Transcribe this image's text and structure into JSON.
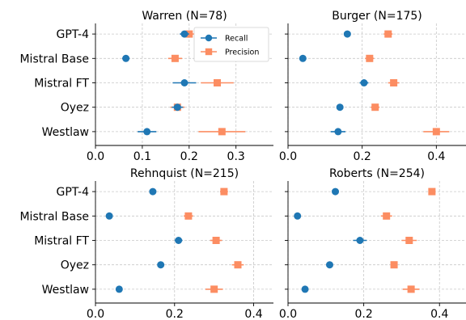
{
  "colors": {
    "recall": "#1f77b4",
    "precision": "#fc8d62"
  },
  "legend": {
    "recall": "Recall",
    "precision": "Precision",
    "placement": "top-right of first panel"
  },
  "chart_data": [
    {
      "type": "scatter",
      "title": "Warren (N=78)",
      "categories": [
        "GPT-4",
        "Mistral Base",
        "Mistral FT",
        "Oyez",
        "Westlaw"
      ],
      "xlim": [
        0,
        0.38
      ],
      "xticks": [
        "0.0",
        "0.1",
        "0.2",
        "0.3"
      ],
      "grid": true,
      "series": [
        {
          "name": "Recall",
          "values": [
            0.19,
            0.065,
            0.19,
            0.175,
            0.11
          ],
          "err": [
            0.01,
            0.008,
            0.025,
            0.012,
            0.02
          ]
        },
        {
          "name": "Precision",
          "values": [
            0.2,
            0.17,
            0.26,
            0.175,
            0.27
          ],
          "err": [
            0.012,
            0.015,
            0.035,
            0.015,
            0.05
          ]
        }
      ]
    },
    {
      "type": "scatter",
      "title": "Burger (N=175)",
      "categories": [
        "GPT-4",
        "Mistral Base",
        "Mistral FT",
        "Oyez",
        "Westlaw"
      ],
      "xlim": [
        0,
        0.48
      ],
      "xticks": [
        "0.0",
        "0.2",
        "0.4"
      ],
      "grid": true,
      "series": [
        {
          "name": "Recall",
          "values": [
            0.16,
            0.04,
            0.205,
            0.14,
            0.135
          ],
          "err": [
            0.005,
            0.005,
            0.012,
            0.005,
            0.02
          ]
        },
        {
          "name": "Precision",
          "values": [
            0.27,
            0.22,
            0.285,
            0.235,
            0.4
          ],
          "err": [
            0.012,
            0.012,
            0.015,
            0.012,
            0.035
          ]
        }
      ]
    },
    {
      "type": "scatter",
      "title": "Rehnquist (N=215)",
      "categories": [
        "GPT-4",
        "Mistral Base",
        "Mistral FT",
        "Oyez",
        "Westlaw"
      ],
      "xlim": [
        0,
        0.45
      ],
      "xticks": [
        "0.0",
        "0.2",
        "0.4"
      ],
      "grid": true,
      "series": [
        {
          "name": "Recall",
          "values": [
            0.145,
            0.035,
            0.21,
            0.165,
            0.06
          ],
          "err": [
            0.004,
            0.004,
            0.01,
            0.008,
            0.006
          ]
        },
        {
          "name": "Precision",
          "values": [
            0.325,
            0.235,
            0.305,
            0.36,
            0.3
          ],
          "err": [
            0.01,
            0.012,
            0.015,
            0.015,
            0.022
          ]
        }
      ]
    },
    {
      "type": "scatter",
      "title": "Roberts (N=254)",
      "categories": [
        "GPT-4",
        "Mistral Base",
        "Mistral FT",
        "Oyez",
        "Westlaw"
      ],
      "xlim": [
        0,
        0.47
      ],
      "xticks": [
        "0.0",
        "0.2",
        "0.4"
      ],
      "grid": true,
      "series": [
        {
          "name": "Recall",
          "values": [
            0.125,
            0.025,
            0.19,
            0.11,
            0.045
          ],
          "err": [
            0.004,
            0.004,
            0.018,
            0.004,
            0.004
          ]
        },
        {
          "name": "Precision",
          "values": [
            0.38,
            0.26,
            0.32,
            0.28,
            0.325
          ],
          "err": [
            0.008,
            0.015,
            0.02,
            0.008,
            0.022
          ]
        }
      ]
    }
  ]
}
